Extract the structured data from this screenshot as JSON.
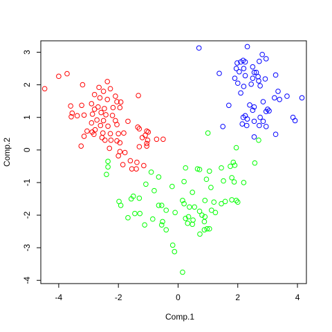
{
  "chart_data": {
    "type": "scatter",
    "title": "",
    "xlabel": "Comp.1",
    "ylabel": "Comp.2",
    "xlim": [
      -4.6,
      4.3
    ],
    "ylim": [
      -4.1,
      3.35
    ],
    "xticks": [
      -4,
      -2,
      0,
      2,
      4
    ],
    "yticks": [
      -4,
      -3,
      -2,
      -1,
      0,
      1,
      2,
      3
    ],
    "grid": false,
    "marker": "open-circle",
    "series": [
      {
        "color": "#ff0000",
        "points": [
          [
            -4.47,
            1.88
          ],
          [
            -4.0,
            2.26
          ],
          [
            -3.72,
            2.34
          ],
          [
            -3.2,
            2.0
          ],
          [
            -2.37,
            2.1
          ],
          [
            -2.65,
            1.92
          ],
          [
            -2.27,
            1.88
          ],
          [
            -2.5,
            1.8
          ],
          [
            -2.8,
            1.7
          ],
          [
            -2.1,
            1.65
          ],
          [
            -2.62,
            1.6
          ],
          [
            -2.37,
            1.55
          ],
          [
            -1.92,
            1.47
          ],
          [
            -2.05,
            1.48
          ],
          [
            -3.6,
            1.35
          ],
          [
            -3.23,
            1.37
          ],
          [
            -2.9,
            1.42
          ],
          [
            -2.68,
            1.32
          ],
          [
            -2.8,
            1.25
          ],
          [
            -2.47,
            1.27
          ],
          [
            -2.18,
            1.3
          ],
          [
            -1.95,
            1.3
          ],
          [
            -1.33,
            1.67
          ],
          [
            -3.55,
            1.13
          ],
          [
            -3.38,
            1.05
          ],
          [
            -3.58,
            1.02
          ],
          [
            -3.15,
            1.07
          ],
          [
            -2.87,
            1.1
          ],
          [
            -2.58,
            1.15
          ],
          [
            -2.42,
            1.08
          ],
          [
            -2.2,
            1.06
          ],
          [
            -2.5,
            0.9
          ],
          [
            -2.72,
            0.92
          ],
          [
            -2.1,
            0.9
          ],
          [
            -2.9,
            0.83
          ],
          [
            -2.35,
            0.73
          ],
          [
            -2.6,
            0.75
          ],
          [
            -2.05,
            0.78
          ],
          [
            -1.68,
            0.88
          ],
          [
            -1.35,
            0.7
          ],
          [
            -1.3,
            0.65
          ],
          [
            -2.78,
            0.62
          ],
          [
            -3.05,
            0.58
          ],
          [
            -2.52,
            0.52
          ],
          [
            -2.27,
            0.5
          ],
          [
            -2.0,
            0.5
          ],
          [
            -1.82,
            0.52
          ],
          [
            -1.05,
            0.58
          ],
          [
            -1.0,
            0.55
          ],
          [
            -1.1,
            0.45
          ],
          [
            -1.2,
            0.38
          ],
          [
            -1.02,
            0.3
          ],
          [
            -0.72,
            0.33
          ],
          [
            -0.5,
            0.33
          ],
          [
            -2.82,
            0.48
          ],
          [
            -2.88,
            0.55
          ],
          [
            -3.15,
            0.42
          ],
          [
            -2.55,
            0.38
          ],
          [
            -2.45,
            0.3
          ],
          [
            -2.25,
            0.3
          ],
          [
            -2.05,
            0.28
          ],
          [
            -1.95,
            0.22
          ],
          [
            -1.05,
            0.2
          ],
          [
            -1.05,
            0.12
          ],
          [
            -3.25,
            0.12
          ],
          [
            -1.3,
            0.1
          ],
          [
            -2.3,
            0.05
          ],
          [
            -1.95,
            -0.05
          ],
          [
            -1.78,
            -0.08
          ],
          [
            -2.0,
            -0.18
          ],
          [
            -1.6,
            -0.33
          ],
          [
            -1.38,
            -0.38
          ],
          [
            -1.85,
            -0.45
          ],
          [
            -1.15,
            -0.48
          ],
          [
            -1.4,
            -0.58
          ],
          [
            -1.55,
            -0.58
          ]
        ]
      },
      {
        "color": "#0000ff",
        "points": [
          [
            0.7,
            3.13
          ],
          [
            2.32,
            3.17
          ],
          [
            2.82,
            2.93
          ],
          [
            2.18,
            2.75
          ],
          [
            2.1,
            2.7
          ],
          [
            2.25,
            2.7
          ],
          [
            2.72,
            2.72
          ],
          [
            1.98,
            2.67
          ],
          [
            2.95,
            2.8
          ],
          [
            2.5,
            2.55
          ],
          [
            2.2,
            2.5
          ],
          [
            1.95,
            2.5
          ],
          [
            2.05,
            2.4
          ],
          [
            2.55,
            2.38
          ],
          [
            2.62,
            2.38
          ],
          [
            1.38,
            2.35
          ],
          [
            3.27,
            2.3
          ],
          [
            2.25,
            2.28
          ],
          [
            2.68,
            2.25
          ],
          [
            2.5,
            2.2
          ],
          [
            1.9,
            2.2
          ],
          [
            2.92,
            2.18
          ],
          [
            2.7,
            2.12
          ],
          [
            2.0,
            2.05
          ],
          [
            2.45,
            2.02
          ],
          [
            2.75,
            1.97
          ],
          [
            2.2,
            1.95
          ],
          [
            3.35,
            1.8
          ],
          [
            2.1,
            1.75
          ],
          [
            3.23,
            1.6
          ],
          [
            3.4,
            1.55
          ],
          [
            3.65,
            1.65
          ],
          [
            4.15,
            1.6
          ],
          [
            1.7,
            1.37
          ],
          [
            2.4,
            1.38
          ],
          [
            2.85,
            1.48
          ],
          [
            2.55,
            1.32
          ],
          [
            3.05,
            1.2
          ],
          [
            3.0,
            1.25
          ],
          [
            2.5,
            1.22
          ],
          [
            2.95,
            1.18
          ],
          [
            3.85,
            1.0
          ],
          [
            2.75,
            1.0
          ],
          [
            2.25,
            1.05
          ],
          [
            2.18,
            1.0
          ],
          [
            2.32,
            0.95
          ],
          [
            2.55,
            0.88
          ],
          [
            3.92,
            0.9
          ],
          [
            2.85,
            0.88
          ],
          [
            2.72,
            0.75
          ],
          [
            2.15,
            0.8
          ],
          [
            2.3,
            0.75
          ],
          [
            2.95,
            0.72
          ],
          [
            1.5,
            0.72
          ],
          [
            3.27,
            0.48
          ],
          [
            2.55,
            0.4
          ]
        ]
      },
      {
        "color": "#00ff00",
        "points": [
          [
            1.0,
            0.52
          ],
          [
            1.95,
            0.07
          ],
          [
            2.7,
            0.3
          ],
          [
            -2.35,
            -0.35
          ],
          [
            -2.35,
            -0.52
          ],
          [
            1.85,
            -0.38
          ],
          [
            2.57,
            -0.4
          ],
          [
            -0.9,
            -0.68
          ],
          [
            1.45,
            -0.55
          ],
          [
            0.65,
            -0.58
          ],
          [
            0.72,
            -0.6
          ],
          [
            -0.65,
            -0.83
          ],
          [
            0.25,
            -0.55
          ],
          [
            -2.4,
            -0.75
          ],
          [
            1.05,
            -0.65
          ],
          [
            0.95,
            -0.9
          ],
          [
            -1.08,
            -1.05
          ],
          [
            1.88,
            -0.98
          ],
          [
            0.2,
            -0.97
          ],
          [
            1.52,
            -0.95
          ],
          [
            1.8,
            -0.85
          ],
          [
            -0.2,
            -1.12
          ],
          [
            -0.8,
            -1.25
          ],
          [
            0.48,
            -1.3
          ],
          [
            1.1,
            -1.15
          ],
          [
            -1.5,
            -1.42
          ],
          [
            -1.57,
            -1.5
          ],
          [
            -1.98,
            -1.58
          ],
          [
            -1.92,
            -1.7
          ],
          [
            -1.3,
            -1.48
          ],
          [
            -0.65,
            -1.7
          ],
          [
            -0.55,
            -1.7
          ],
          [
            -0.4,
            -1.85
          ],
          [
            -0.1,
            -1.92
          ],
          [
            0.15,
            -1.55
          ],
          [
            0.2,
            -1.65
          ],
          [
            0.38,
            -1.75
          ],
          [
            0.55,
            -1.75
          ],
          [
            0.72,
            -1.88
          ],
          [
            0.9,
            -1.55
          ],
          [
            1.2,
            -1.6
          ],
          [
            1.45,
            -1.65
          ],
          [
            1.58,
            -1.58
          ],
          [
            1.8,
            -1.53
          ],
          [
            1.95,
            -1.55
          ],
          [
            2.0,
            -1.6
          ],
          [
            0.8,
            -2.0
          ],
          [
            0.9,
            -2.05
          ],
          [
            1.12,
            -1.85
          ],
          [
            1.25,
            -1.92
          ],
          [
            0.35,
            -2.05
          ],
          [
            -1.28,
            -1.95
          ],
          [
            -1.45,
            -1.95
          ],
          [
            -0.85,
            -2.12
          ],
          [
            -0.52,
            -2.2
          ],
          [
            0.25,
            -2.1
          ],
          [
            0.5,
            -2.15
          ],
          [
            0.88,
            -2.2
          ],
          [
            -1.68,
            -2.08
          ],
          [
            -1.12,
            -2.3
          ],
          [
            -0.55,
            -2.3
          ],
          [
            0.32,
            -2.25
          ],
          [
            0.48,
            -2.28
          ],
          [
            0.97,
            -2.42
          ],
          [
            0.88,
            -2.45
          ],
          [
            0.73,
            -2.58
          ],
          [
            -0.4,
            -2.45
          ],
          [
            1.05,
            -2.42
          ],
          [
            -0.18,
            -2.92
          ],
          [
            -0.12,
            -3.12
          ],
          [
            0.15,
            -3.75
          ],
          [
            1.9,
            -0.47
          ],
          [
            1.75,
            -0.5
          ],
          [
            2.2,
            -1.0
          ]
        ]
      }
    ]
  }
}
